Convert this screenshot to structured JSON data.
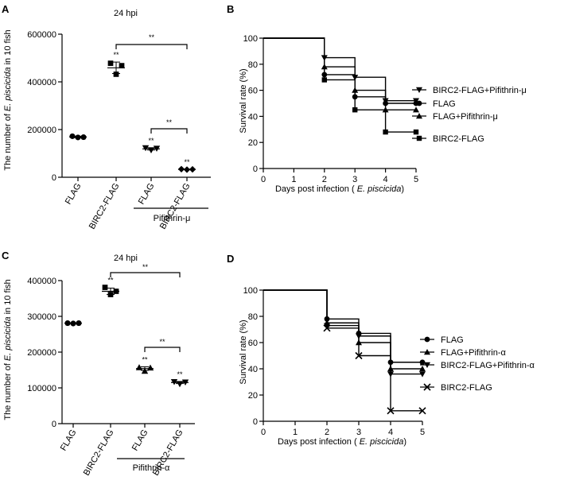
{
  "panels": {
    "A": {
      "letter": "A",
      "title": "24 hpi",
      "ylabel_pre": "The number of ",
      "ylabel_italic": "E. piscicida",
      "ylabel_post": " in 10 fish",
      "bracket_label": "Pifithrin-μ"
    },
    "B": {
      "letter": "B"
    },
    "C": {
      "letter": "C",
      "title": "24 hpi",
      "ylabel_pre": "The number of ",
      "ylabel_italic": "E. piscicida",
      "ylabel_post": " in 10 fish",
      "bracket_label": "Pifithrin-α"
    },
    "D": {
      "letter": "D"
    }
  },
  "survival_axis": {
    "ylabel": "Survival rate (%)",
    "xlabel_pre": "Days post infection ( ",
    "xlabel_italic": "E. piscicida",
    "xlabel_post": ")"
  },
  "sig_label": "**",
  "chart_data": [
    {
      "panel": "A",
      "type": "scatter",
      "title": "24 hpi",
      "ylabel": "The number of E. piscicida in 10 fish",
      "categories": [
        "FLAG",
        "BIRC2-FLAG",
        "FLAG",
        "BIRC2-FLAG"
      ],
      "group_label": "Pifithrin-μ",
      "ylim": [
        0,
        600000
      ],
      "yticks": [
        0,
        200000,
        400000,
        600000
      ],
      "series": [
        {
          "category": "FLAG",
          "marker": "circle",
          "points": [
            172000,
            167000,
            168000
          ],
          "mean": 169000,
          "sd": 3000
        },
        {
          "category": "BIRC2-FLAG",
          "marker": "square",
          "points": [
            478000,
            432000,
            468000
          ],
          "mean": 459000,
          "sd": 24000,
          "sig": "**"
        },
        {
          "category": "FLAG",
          "marker": "triangle-down",
          "points": [
            123000,
            114000,
            121000
          ],
          "mean": 119000,
          "sd": 5000,
          "sig": "**"
        },
        {
          "category": "BIRC2-FLAG",
          "marker": "diamond",
          "points": [
            34000,
            32000,
            33000
          ],
          "mean": 33000,
          "sd": 1000,
          "sig": "**"
        }
      ],
      "comparisons": [
        {
          "from": 1,
          "to": 3,
          "label": "**"
        },
        {
          "from": 2,
          "to": 3,
          "label": "**"
        }
      ]
    },
    {
      "panel": "B",
      "type": "line",
      "step": true,
      "xlabel": "Days post infection ( E. piscicida)",
      "ylabel": "Survival rate (%)",
      "xlim": [
        0,
        5
      ],
      "ylim": [
        0,
        100
      ],
      "xticks": [
        0,
        1,
        2,
        3,
        4,
        5
      ],
      "yticks": [
        0,
        20,
        40,
        60,
        80,
        100
      ],
      "legend_position": "right",
      "series": [
        {
          "name": "BIRC2-FLAG+Pifithrin-μ",
          "marker": "triangle-down",
          "x": [
            0,
            2,
            3,
            4,
            5
          ],
          "y": [
            100,
            85,
            70,
            52,
            52
          ]
        },
        {
          "name": "FLAG",
          "marker": "circle",
          "x": [
            0,
            2,
            3,
            4,
            5
          ],
          "y": [
            100,
            72,
            55,
            50,
            50
          ]
        },
        {
          "name": "FLAG+Pifithrin-μ",
          "marker": "triangle",
          "x": [
            0,
            2,
            3,
            4,
            5
          ],
          "y": [
            100,
            78,
            60,
            45,
            45
          ]
        },
        {
          "name": "BIRC2-FLAG",
          "marker": "square",
          "x": [
            0,
            2,
            3,
            4,
            5
          ],
          "y": [
            100,
            68,
            45,
            28,
            28
          ]
        }
      ]
    },
    {
      "panel": "C",
      "type": "scatter",
      "title": "24 hpi",
      "ylabel": "The number of E. piscicida in 10 fish",
      "categories": [
        "FLAG",
        "BIRC2-FLAG",
        "FLAG",
        "BIRC2-FLAG"
      ],
      "group_label": "Pifithrin-α",
      "ylim": [
        0,
        400000
      ],
      "yticks": [
        0,
        100000,
        200000,
        300000,
        400000
      ],
      "series": [
        {
          "category": "FLAG",
          "marker": "circle",
          "points": [
            281000,
            280000,
            281000
          ],
          "mean": 281000,
          "sd": 1000
        },
        {
          "category": "BIRC2-FLAG",
          "marker": "square",
          "points": [
            381000,
            361000,
            370000
          ],
          "mean": 370000,
          "sd": 9000,
          "sig": "**"
        },
        {
          "category": "FLAG",
          "marker": "triangle",
          "points": [
            157000,
            147000,
            156000
          ],
          "mean": 154000,
          "sd": 5000,
          "sig": "**"
        },
        {
          "category": "BIRC2-FLAG",
          "marker": "triangle-down",
          "points": [
            117000,
            111000,
            116000
          ],
          "mean": 115000,
          "sd": 3000,
          "sig": "**"
        }
      ],
      "comparisons": [
        {
          "from": 1,
          "to": 3,
          "label": "**"
        },
        {
          "from": 2,
          "to": 3,
          "label": "**"
        }
      ]
    },
    {
      "panel": "D",
      "type": "line",
      "step": true,
      "xlabel": "Days post infection ( E. piscicida)",
      "ylabel": "Survival rate (%)",
      "xlim": [
        0,
        5
      ],
      "ylim": [
        0,
        100
      ],
      "xticks": [
        0,
        1,
        2,
        3,
        4,
        5
      ],
      "yticks": [
        0,
        20,
        40,
        60,
        80,
        100
      ],
      "legend_position": "right",
      "series": [
        {
          "name": "FLAG",
          "marker": "circle",
          "x": [
            0,
            2,
            3,
            4,
            5
          ],
          "y": [
            100,
            78,
            67,
            45,
            45
          ]
        },
        {
          "name": "FLAG+Pifithrin-α",
          "marker": "triangle",
          "x": [
            0,
            2,
            3,
            4,
            5
          ],
          "y": [
            100,
            75,
            60,
            40,
            40
          ]
        },
        {
          "name": "BIRC2-FLAG+Pifithrin-α",
          "marker": "triangle-down",
          "x": [
            0,
            2,
            3,
            4,
            5
          ],
          "y": [
            100,
            73,
            65,
            36,
            36
          ]
        },
        {
          "name": "BIRC2-FLAG",
          "marker": "x",
          "x": [
            0,
            2,
            3,
            4,
            5
          ],
          "y": [
            100,
            71,
            50,
            8,
            8
          ]
        }
      ]
    }
  ]
}
